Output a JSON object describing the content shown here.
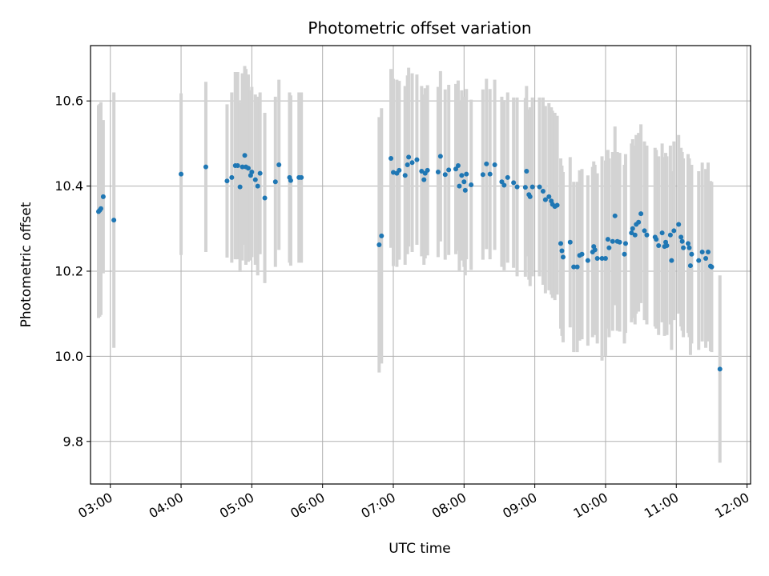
{
  "chart_data": {
    "type": "scatter",
    "title": "Photometric offset variation",
    "xlabel": "UTC time",
    "ylabel": "Photometric offset",
    "x_ticks": [
      "03:00",
      "04:00",
      "05:00",
      "06:00",
      "07:00",
      "08:00",
      "09:00",
      "10:00",
      "11:00",
      "12:00"
    ],
    "y_ticks": [
      "9.8",
      "10.0",
      "10.2",
      "10.4",
      "10.6"
    ],
    "xlim_hours": [
      2.72,
      12.05
    ],
    "ylim": [
      9.7,
      10.73
    ],
    "grid": true,
    "marker_color": "#1f77b4",
    "errorbar_color": "#d3d3d3",
    "points": [
      {
        "t": "02:50",
        "y": 10.34,
        "err": 0.25
      },
      {
        "t": "02:51",
        "y": 10.343,
        "err": 0.25
      },
      {
        "t": "02:52",
        "y": 10.347,
        "err": 0.25
      },
      {
        "t": "02:54",
        "y": 10.375,
        "err": 0.18
      },
      {
        "t": "03:03",
        "y": 10.32,
        "err": 0.3
      },
      {
        "t": "04:00",
        "y": 10.428,
        "err": 0.19
      },
      {
        "t": "04:21",
        "y": 10.445,
        "err": 0.2
      },
      {
        "t": "04:39",
        "y": 10.412,
        "err": 0.18
      },
      {
        "t": "04:43",
        "y": 10.42,
        "err": 0.2
      },
      {
        "t": "04:46",
        "y": 10.448,
        "err": 0.22
      },
      {
        "t": "04:48",
        "y": 10.448,
        "err": 0.22
      },
      {
        "t": "04:50",
        "y": 10.398,
        "err": 0.2
      },
      {
        "t": "04:52",
        "y": 10.445,
        "err": 0.22
      },
      {
        "t": "04:54",
        "y": 10.472,
        "err": 0.21
      },
      {
        "t": "04:55",
        "y": 10.445,
        "err": 0.23
      },
      {
        "t": "04:57",
        "y": 10.442,
        "err": 0.22
      },
      {
        "t": "04:59",
        "y": 10.425,
        "err": 0.2
      },
      {
        "t": "05:00",
        "y": 10.433,
        "err": 0.2
      },
      {
        "t": "05:03",
        "y": 10.415,
        "err": 0.2
      },
      {
        "t": "05:05",
        "y": 10.4,
        "err": 0.21
      },
      {
        "t": "05:07",
        "y": 10.43,
        "err": 0.19
      },
      {
        "t": "05:11",
        "y": 10.372,
        "err": 0.2
      },
      {
        "t": "05:20",
        "y": 10.41,
        "err": 0.2
      },
      {
        "t": "05:23",
        "y": 10.45,
        "err": 0.2
      },
      {
        "t": "05:32",
        "y": 10.42,
        "err": 0.2
      },
      {
        "t": "05:33",
        "y": 10.413,
        "err": 0.2
      },
      {
        "t": "05:40",
        "y": 10.42,
        "err": 0.2
      },
      {
        "t": "05:42",
        "y": 10.42,
        "err": 0.2
      },
      {
        "t": "06:48",
        "y": 10.262,
        "err": 0.3
      },
      {
        "t": "06:50",
        "y": 10.283,
        "err": 0.3
      },
      {
        "t": "06:58",
        "y": 10.465,
        "err": 0.21
      },
      {
        "t": "07:00",
        "y": 10.432,
        "err": 0.22
      },
      {
        "t": "07:03",
        "y": 10.43,
        "err": 0.22
      },
      {
        "t": "07:05",
        "y": 10.437,
        "err": 0.21
      },
      {
        "t": "07:10",
        "y": 10.425,
        "err": 0.21
      },
      {
        "t": "07:12",
        "y": 10.45,
        "err": 0.21
      },
      {
        "t": "07:13",
        "y": 10.468,
        "err": 0.21
      },
      {
        "t": "07:16",
        "y": 10.455,
        "err": 0.21
      },
      {
        "t": "07:20",
        "y": 10.462,
        "err": 0.2
      },
      {
        "t": "07:24",
        "y": 10.435,
        "err": 0.2
      },
      {
        "t": "07:26",
        "y": 10.415,
        "err": 0.2
      },
      {
        "t": "07:27",
        "y": 10.43,
        "err": 0.2
      },
      {
        "t": "07:29",
        "y": 10.437,
        "err": 0.2
      },
      {
        "t": "07:38",
        "y": 10.433,
        "err": 0.2
      },
      {
        "t": "07:40",
        "y": 10.47,
        "err": 0.2
      },
      {
        "t": "07:44",
        "y": 10.427,
        "err": 0.2
      },
      {
        "t": "07:47",
        "y": 10.438,
        "err": 0.2
      },
      {
        "t": "07:53",
        "y": 10.44,
        "err": 0.2
      },
      {
        "t": "07:55",
        "y": 10.448,
        "err": 0.2
      },
      {
        "t": "07:56",
        "y": 10.4,
        "err": 0.2
      },
      {
        "t": "07:58",
        "y": 10.425,
        "err": 0.2
      },
      {
        "t": "08:00",
        "y": 10.41,
        "err": 0.2
      },
      {
        "t": "08:01",
        "y": 10.39,
        "err": 0.2
      },
      {
        "t": "08:02",
        "y": 10.428,
        "err": 0.2
      },
      {
        "t": "08:06",
        "y": 10.403,
        "err": 0.2
      },
      {
        "t": "08:16",
        "y": 10.427,
        "err": 0.2
      },
      {
        "t": "08:19",
        "y": 10.452,
        "err": 0.2
      },
      {
        "t": "08:22",
        "y": 10.428,
        "err": 0.2
      },
      {
        "t": "08:26",
        "y": 10.45,
        "err": 0.2
      },
      {
        "t": "08:32",
        "y": 10.41,
        "err": 0.2
      },
      {
        "t": "08:34",
        "y": 10.402,
        "err": 0.2
      },
      {
        "t": "08:37",
        "y": 10.42,
        "err": 0.2
      },
      {
        "t": "08:42",
        "y": 10.408,
        "err": 0.2
      },
      {
        "t": "08:45",
        "y": 10.398,
        "err": 0.21
      },
      {
        "t": "08:52",
        "y": 10.397,
        "err": 0.21
      },
      {
        "t": "08:53",
        "y": 10.435,
        "err": 0.2
      },
      {
        "t": "08:55",
        "y": 10.38,
        "err": 0.2
      },
      {
        "t": "08:56",
        "y": 10.375,
        "err": 0.21
      },
      {
        "t": "08:58",
        "y": 10.398,
        "err": 0.21
      },
      {
        "t": "09:04",
        "y": 10.398,
        "err": 0.21
      },
      {
        "t": "09:07",
        "y": 10.388,
        "err": 0.22
      },
      {
        "t": "09:09",
        "y": 10.368,
        "err": 0.22
      },
      {
        "t": "09:12",
        "y": 10.375,
        "err": 0.22
      },
      {
        "t": "09:14",
        "y": 10.365,
        "err": 0.22
      },
      {
        "t": "09:15",
        "y": 10.357,
        "err": 0.22
      },
      {
        "t": "09:17",
        "y": 10.352,
        "err": 0.22
      },
      {
        "t": "09:19",
        "y": 10.355,
        "err": 0.21
      },
      {
        "t": "09:22",
        "y": 10.265,
        "err": 0.2
      },
      {
        "t": "09:23",
        "y": 10.248,
        "err": 0.2
      },
      {
        "t": "09:24",
        "y": 10.233,
        "err": 0.2
      },
      {
        "t": "09:30",
        "y": 10.268,
        "err": 0.2
      },
      {
        "t": "09:33",
        "y": 10.21,
        "err": 0.2
      },
      {
        "t": "09:36",
        "y": 10.21,
        "err": 0.2
      },
      {
        "t": "09:38",
        "y": 10.237,
        "err": 0.2
      },
      {
        "t": "09:40",
        "y": 10.24,
        "err": 0.2
      },
      {
        "t": "09:45",
        "y": 10.225,
        "err": 0.2
      },
      {
        "t": "09:49",
        "y": 10.245,
        "err": 0.2
      },
      {
        "t": "09:50",
        "y": 10.258,
        "err": 0.2
      },
      {
        "t": "09:51",
        "y": 10.25,
        "err": 0.2
      },
      {
        "t": "09:53",
        "y": 10.23,
        "err": 0.2
      },
      {
        "t": "09:57",
        "y": 10.23,
        "err": 0.24
      },
      {
        "t": "10:00",
        "y": 10.23,
        "err": 0.23
      },
      {
        "t": "10:02",
        "y": 10.275,
        "err": 0.21
      },
      {
        "t": "10:03",
        "y": 10.255,
        "err": 0.21
      },
      {
        "t": "10:06",
        "y": 10.27,
        "err": 0.21
      },
      {
        "t": "10:08",
        "y": 10.33,
        "err": 0.21
      },
      {
        "t": "10:10",
        "y": 10.27,
        "err": 0.21
      },
      {
        "t": "10:12",
        "y": 10.268,
        "err": 0.21
      },
      {
        "t": "10:16",
        "y": 10.24,
        "err": 0.21
      },
      {
        "t": "10:17",
        "y": 10.265,
        "err": 0.21
      },
      {
        "t": "10:22",
        "y": 10.29,
        "err": 0.21
      },
      {
        "t": "10:23",
        "y": 10.3,
        "err": 0.21
      },
      {
        "t": "10:25",
        "y": 10.285,
        "err": 0.21
      },
      {
        "t": "10:26",
        "y": 10.31,
        "err": 0.21
      },
      {
        "t": "10:28",
        "y": 10.315,
        "err": 0.21
      },
      {
        "t": "10:30",
        "y": 10.335,
        "err": 0.21
      },
      {
        "t": "10:33",
        "y": 10.295,
        "err": 0.21
      },
      {
        "t": "10:35",
        "y": 10.285,
        "err": 0.21
      },
      {
        "t": "10:42",
        "y": 10.28,
        "err": 0.21
      },
      {
        "t": "10:43",
        "y": 10.275,
        "err": 0.21
      },
      {
        "t": "10:45",
        "y": 10.26,
        "err": 0.21
      },
      {
        "t": "10:48",
        "y": 10.29,
        "err": 0.21
      },
      {
        "t": "10:50",
        "y": 10.258,
        "err": 0.21
      },
      {
        "t": "10:51",
        "y": 10.268,
        "err": 0.21
      },
      {
        "t": "10:52",
        "y": 10.26,
        "err": 0.21
      },
      {
        "t": "10:55",
        "y": 10.285,
        "err": 0.21
      },
      {
        "t": "10:56",
        "y": 10.225,
        "err": 0.21
      },
      {
        "t": "10:58",
        "y": 10.295,
        "err": 0.21
      },
      {
        "t": "11:02",
        "y": 10.31,
        "err": 0.21
      },
      {
        "t": "11:04",
        "y": 10.28,
        "err": 0.21
      },
      {
        "t": "11:05",
        "y": 10.27,
        "err": 0.21
      },
      {
        "t": "11:06",
        "y": 10.255,
        "err": 0.21
      },
      {
        "t": "11:10",
        "y": 10.265,
        "err": 0.21
      },
      {
        "t": "11:11",
        "y": 10.255,
        "err": 0.21
      },
      {
        "t": "11:12",
        "y": 10.213,
        "err": 0.21
      },
      {
        "t": "11:13",
        "y": 10.24,
        "err": 0.21
      },
      {
        "t": "11:19",
        "y": 10.225,
        "err": 0.21
      },
      {
        "t": "11:22",
        "y": 10.245,
        "err": 0.21
      },
      {
        "t": "11:25",
        "y": 10.23,
        "err": 0.21
      },
      {
        "t": "11:27",
        "y": 10.245,
        "err": 0.21
      },
      {
        "t": "11:29",
        "y": 10.212,
        "err": 0.2
      },
      {
        "t": "11:30",
        "y": 10.21,
        "err": 0.2
      },
      {
        "t": "11:37",
        "y": 9.97,
        "err": 0.22
      }
    ]
  }
}
